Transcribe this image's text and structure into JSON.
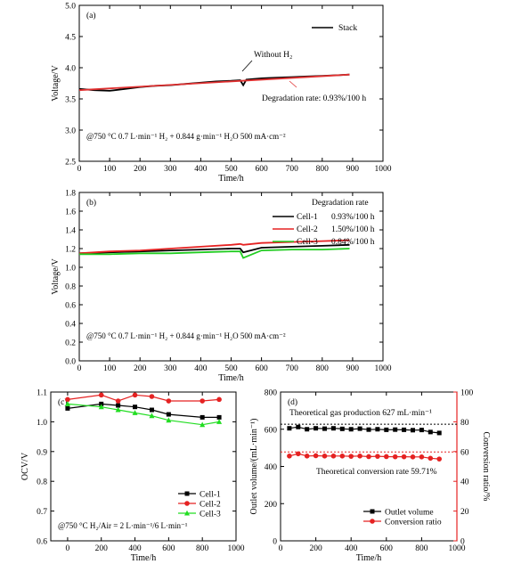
{
  "chart_data": [
    {
      "panel": "(a)",
      "type": "line",
      "xlabel": "Time/h",
      "ylabel": "Voltage/V",
      "xlim": [
        0,
        1000
      ],
      "ylim": [
        2.5,
        5.0
      ],
      "xticks": [
        0,
        100,
        200,
        300,
        400,
        500,
        600,
        700,
        800,
        900,
        1000
      ],
      "yticks": [
        2.5,
        3.0,
        3.5,
        4.0,
        4.5,
        5.0
      ],
      "ytick_labels": [
        "2.5",
        "3.0",
        "3.5",
        "4.0",
        "4.5",
        "5.0"
      ],
      "legend": [
        "Stack"
      ],
      "legend_position": "top-right",
      "annotations": [
        "Without H₂",
        "Degradation rate: 0.93%/100 h"
      ],
      "condition": "@750 °C  0.7 L·min⁻¹ H₂ + 0.844 g·min⁻¹ H₂O  500 mA·cm⁻²",
      "series": [
        {
          "name": "Stack",
          "color": "#000000",
          "x": [
            0,
            50,
            100,
            150,
            200,
            250,
            300,
            350,
            400,
            450,
            500,
            530,
            540,
            550,
            600,
            650,
            700,
            750,
            800,
            850,
            890
          ],
          "y": [
            3.66,
            3.64,
            3.63,
            3.66,
            3.69,
            3.71,
            3.72,
            3.74,
            3.76,
            3.78,
            3.79,
            3.8,
            3.72,
            3.81,
            3.83,
            3.84,
            3.85,
            3.86,
            3.87,
            3.88,
            3.89
          ]
        },
        {
          "name": "fit",
          "color": "#e03030",
          "x": [
            0,
            890
          ],
          "y": [
            3.64,
            3.89
          ]
        }
      ]
    },
    {
      "panel": "(b)",
      "type": "line",
      "xlabel": "Time/h",
      "ylabel": "Voltage/V",
      "xlim": [
        0,
        1000
      ],
      "ylim": [
        0.0,
        1.8
      ],
      "xticks": [
        0,
        100,
        200,
        300,
        400,
        500,
        600,
        700,
        800,
        900,
        1000
      ],
      "yticks": [
        0.0,
        0.2,
        0.4,
        0.6,
        0.8,
        1.0,
        1.2,
        1.4,
        1.6,
        1.8
      ],
      "ytick_labels": [
        "0.0",
        "0.2",
        "0.4",
        "0.6",
        "0.8",
        "1.0",
        "1.2",
        "1.4",
        "1.6",
        "1.8"
      ],
      "legend_title": "Degradation rate",
      "legend_position": "top-right",
      "condition": "@750 °C  0.7 L·min⁻¹ H₂ + 0.844 g·min⁻¹ H₂O  500 mA·cm⁻²",
      "series": [
        {
          "name": "Cell-1",
          "rate": "0.93%/100 h",
          "color": "#000000",
          "x": [
            0,
            100,
            200,
            300,
            400,
            500,
            530,
            540,
            600,
            700,
            800,
            890
          ],
          "y": [
            1.15,
            1.16,
            1.17,
            1.18,
            1.19,
            1.2,
            1.2,
            1.16,
            1.21,
            1.22,
            1.23,
            1.24
          ]
        },
        {
          "name": "Cell-2",
          "rate": "1.50%/100 h",
          "color": "#e52222",
          "x": [
            0,
            100,
            200,
            300,
            400,
            500,
            530,
            540,
            600,
            700,
            800,
            890
          ],
          "y": [
            1.15,
            1.17,
            1.18,
            1.2,
            1.22,
            1.24,
            1.25,
            1.24,
            1.26,
            1.27,
            1.28,
            1.29
          ]
        },
        {
          "name": "Cell-3",
          "rate": "0.84%/100 h",
          "color": "#22cc22",
          "x": [
            0,
            100,
            200,
            300,
            400,
            500,
            530,
            540,
            600,
            700,
            800,
            890
          ],
          "y": [
            1.14,
            1.14,
            1.15,
            1.15,
            1.16,
            1.17,
            1.17,
            1.1,
            1.18,
            1.19,
            1.19,
            1.2
          ]
        }
      ]
    },
    {
      "panel": "(c)",
      "type": "line",
      "xlabel": "Time/h",
      "ylabel": "OCV/V",
      "xlim": [
        -100,
        1000
      ],
      "ylim": [
        0.6,
        1.1
      ],
      "xticks": [
        0,
        200,
        400,
        600,
        800,
        1000
      ],
      "yticks": [
        0.6,
        0.7,
        0.8,
        0.9,
        1.0,
        1.1
      ],
      "ytick_labels": [
        "0.6",
        "0.7",
        "0.8",
        "0.9",
        "1.0",
        "1.1"
      ],
      "legend_position": "bottom-right",
      "condition": "@750 °C H₂/Air = 2 L·min⁻¹/6 L·min⁻¹",
      "series": [
        {
          "name": "Cell-1",
          "color": "#000000",
          "marker": "square",
          "x": [
            0,
            200,
            300,
            400,
            500,
            600,
            800,
            900
          ],
          "y": [
            1.045,
            1.06,
            1.055,
            1.05,
            1.04,
            1.025,
            1.015,
            1.015
          ]
        },
        {
          "name": "Cell-2",
          "color": "#e52222",
          "marker": "circle",
          "x": [
            0,
            200,
            300,
            400,
            500,
            600,
            800,
            900
          ],
          "y": [
            1.075,
            1.09,
            1.07,
            1.09,
            1.085,
            1.07,
            1.07,
            1.075
          ]
        },
        {
          "name": "Cell-3",
          "color": "#22dd22",
          "marker": "triangle",
          "x": [
            0,
            200,
            300,
            400,
            500,
            600,
            800,
            900
          ],
          "y": [
            1.06,
            1.05,
            1.04,
            1.03,
            1.02,
            1.005,
            0.99,
            1.0
          ]
        }
      ]
    },
    {
      "panel": "(d)",
      "type": "line",
      "xlabel": "Time/h",
      "ylabel": "Outlet volume/(mL·min⁻¹)",
      "ylabel_right": "Conversion ratio/%",
      "xlim": [
        0,
        1000
      ],
      "ylim": [
        0,
        800
      ],
      "ylim_right": [
        0,
        100
      ],
      "xticks": [
        0,
        200,
        400,
        600,
        800,
        1000
      ],
      "yticks": [
        0,
        200,
        400,
        600,
        800
      ],
      "yticks_right": [
        0,
        20,
        40,
        60,
        80,
        100
      ],
      "legend_position": "bottom-right",
      "annotations": [
        "Theoretical gas production 627 mL·min⁻¹",
        "Theoretical conversion rate 59.71%"
      ],
      "reference_lines": [
        {
          "axis": "left",
          "value": 627,
          "color": "#000000"
        },
        {
          "axis": "right",
          "value": 59.71,
          "color": "#e52222"
        }
      ],
      "series": [
        {
          "name": "Outlet volume",
          "axis": "left",
          "color": "#000000",
          "marker": "square",
          "x": [
            50,
            100,
            150,
            200,
            250,
            300,
            350,
            400,
            450,
            500,
            550,
            600,
            650,
            700,
            750,
            800,
            850,
            900
          ],
          "y": [
            605,
            612,
            600,
            605,
            603,
            605,
            602,
            600,
            603,
            598,
            600,
            597,
            598,
            597,
            595,
            596,
            585,
            580
          ]
        },
        {
          "name": "Conversion ratio",
          "axis": "right",
          "color": "#e52222",
          "marker": "circle",
          "x": [
            50,
            100,
            150,
            200,
            250,
            300,
            350,
            400,
            450,
            500,
            550,
            600,
            650,
            700,
            750,
            800,
            850,
            900
          ],
          "y": [
            57,
            58.5,
            57,
            57.2,
            57,
            57,
            57,
            56.8,
            57,
            56.6,
            56.8,
            56.6,
            56.5,
            56.5,
            56.4,
            56.4,
            55.5,
            55
          ]
        }
      ]
    }
  ]
}
